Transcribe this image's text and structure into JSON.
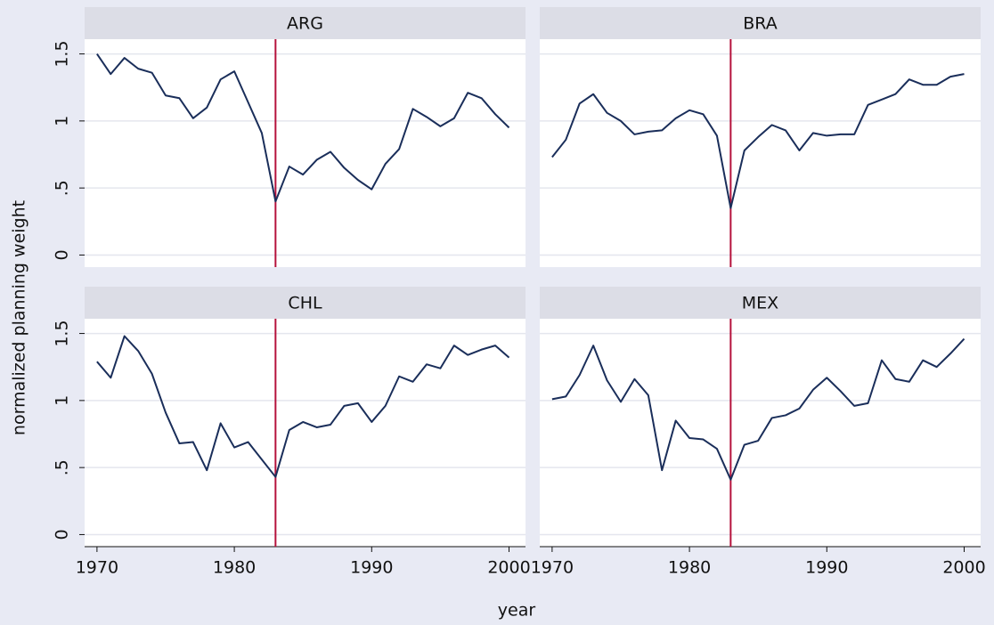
{
  "y_label": "normalized planning weight",
  "x_label": "year",
  "chart_data": [
    {
      "type": "line",
      "title": "ARG",
      "x": [
        1970,
        1971,
        1972,
        1973,
        1974,
        1975,
        1976,
        1977,
        1978,
        1979,
        1980,
        1981,
        1982,
        1983,
        1984,
        1985,
        1986,
        1987,
        1988,
        1989,
        1990,
        1991,
        1992,
        1993,
        1994,
        1995,
        1996,
        1997,
        1998,
        1999,
        2000
      ],
      "values": [
        1.5,
        1.35,
        1.47,
        1.39,
        1.36,
        1.19,
        1.17,
        1.02,
        1.1,
        1.31,
        1.37,
        1.14,
        0.91,
        0.4,
        0.66,
        0.6,
        0.71,
        0.77,
        0.65,
        0.56,
        0.49,
        0.68,
        0.79,
        1.09,
        1.03,
        0.96,
        1.02,
        1.21,
        1.17,
        1.05,
        0.95
      ],
      "color": "#1a2e5a",
      "vline": 1983,
      "vline_color": "#b5123c",
      "xlim": [
        1969.1,
        2001.2
      ],
      "ylim": [
        -0.09,
        1.61
      ],
      "yticks": [
        0,
        {
          "value": 0.5,
          "label": ".5"
        },
        1,
        1.5
      ],
      "grid": true
    },
    {
      "type": "line",
      "title": "BRA",
      "x": [
        1970,
        1971,
        1972,
        1973,
        1974,
        1975,
        1976,
        1977,
        1978,
        1979,
        1980,
        1981,
        1982,
        1983,
        1984,
        1985,
        1986,
        1987,
        1988,
        1989,
        1990,
        1991,
        1992,
        1993,
        1994,
        1995,
        1996,
        1997,
        1998,
        1999,
        2000
      ],
      "values": [
        0.73,
        0.86,
        1.13,
        1.2,
        1.06,
        1.0,
        0.9,
        0.92,
        0.93,
        1.02,
        1.08,
        1.05,
        0.89,
        0.35,
        0.78,
        0.88,
        0.97,
        0.93,
        0.78,
        0.91,
        0.89,
        0.9,
        0.9,
        1.12,
        1.16,
        1.2,
        1.31,
        1.27,
        1.27,
        1.33,
        1.35
      ],
      "color": "#1a2e5a",
      "vline": 1983,
      "vline_color": "#b5123c",
      "xlim": [
        1969.1,
        2001.2
      ],
      "ylim": [
        -0.09,
        1.61
      ],
      "yticks": [
        0,
        0.5,
        1,
        1.5
      ],
      "grid": true
    },
    {
      "type": "line",
      "title": "CHL",
      "x": [
        1970,
        1971,
        1972,
        1973,
        1974,
        1975,
        1976,
        1977,
        1978,
        1979,
        1980,
        1981,
        1982,
        1983,
        1984,
        1985,
        1986,
        1987,
        1988,
        1989,
        1990,
        1991,
        1992,
        1993,
        1994,
        1995,
        1996,
        1997,
        1998,
        1999,
        2000
      ],
      "values": [
        1.29,
        1.17,
        1.48,
        1.37,
        1.2,
        0.91,
        0.68,
        0.69,
        0.48,
        0.83,
        0.65,
        0.69,
        0.56,
        0.43,
        0.78,
        0.84,
        0.8,
        0.82,
        0.96,
        0.98,
        0.84,
        0.96,
        1.18,
        1.14,
        1.27,
        1.24,
        1.41,
        1.34,
        1.38,
        1.41,
        1.32
      ],
      "color": "#1a2e5a",
      "vline": 1983,
      "vline_color": "#b5123c",
      "xlim": [
        1969.1,
        2001.2
      ],
      "ylim": [
        -0.09,
        1.61
      ],
      "xticks": [
        1970,
        1980,
        1990,
        2000
      ],
      "yticks": [
        0,
        {
          "value": 0.5,
          "label": ".5"
        },
        1,
        1.5
      ],
      "grid": true
    },
    {
      "type": "line",
      "title": "MEX",
      "x": [
        1970,
        1971,
        1972,
        1973,
        1974,
        1975,
        1976,
        1977,
        1978,
        1979,
        1980,
        1981,
        1982,
        1983,
        1984,
        1985,
        1986,
        1987,
        1988,
        1989,
        1990,
        1991,
        1992,
        1993,
        1994,
        1995,
        1996,
        1997,
        1998,
        1999,
        2000
      ],
      "values": [
        1.01,
        1.03,
        1.19,
        1.41,
        1.15,
        0.99,
        1.16,
        1.04,
        0.48,
        0.85,
        0.72,
        0.71,
        0.64,
        0.41,
        0.67,
        0.7,
        0.87,
        0.89,
        0.94,
        1.08,
        1.17,
        1.07,
        0.96,
        0.98,
        1.3,
        1.16,
        1.14,
        1.3,
        1.25,
        1.35,
        1.46
      ],
      "color": "#1a2e5a",
      "vline": 1983,
      "vline_color": "#b5123c",
      "xlim": [
        1969.1,
        2001.2
      ],
      "ylim": [
        -0.09,
        1.61
      ],
      "xticks": [
        1970,
        1980,
        1990,
        2000
      ],
      "yticks": [
        0,
        0.5,
        1,
        1.5
      ],
      "grid": true
    }
  ]
}
